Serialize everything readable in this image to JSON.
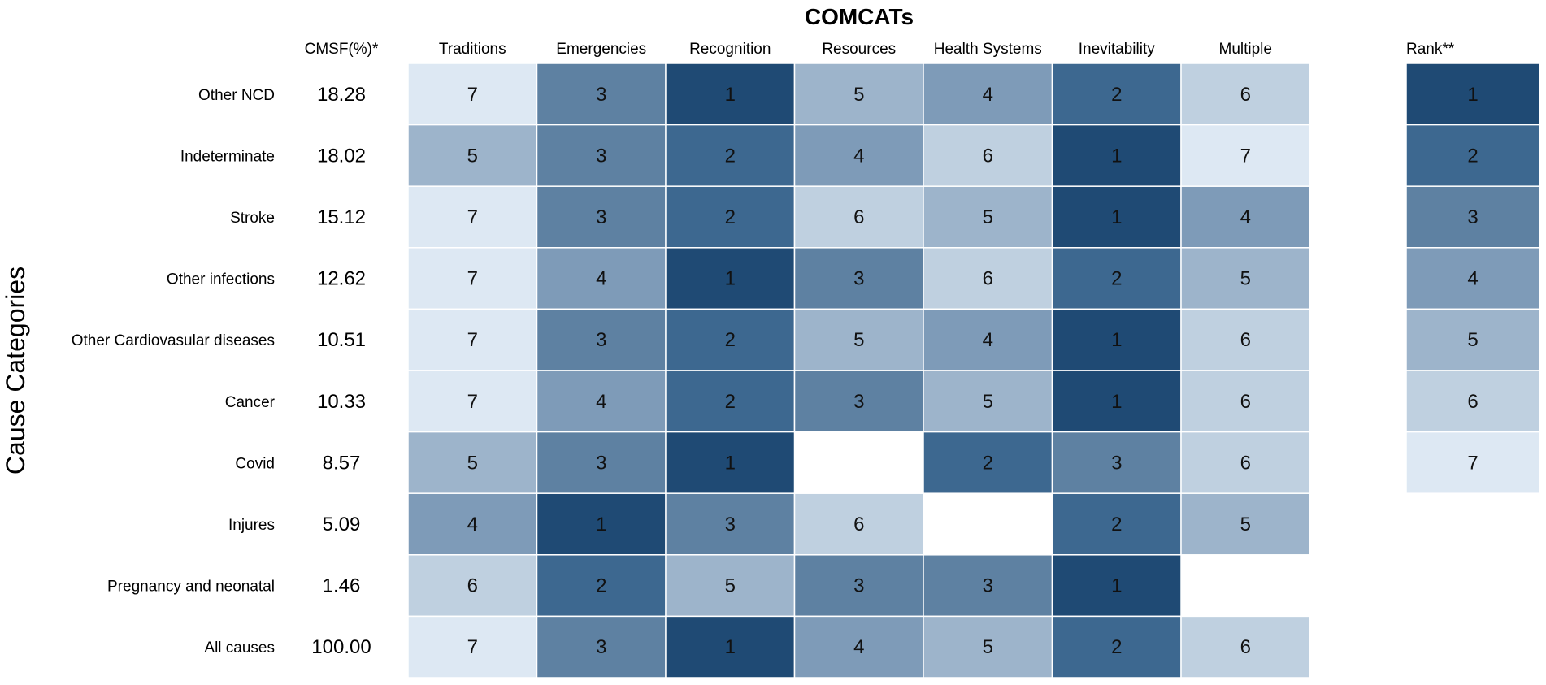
{
  "chart_data": {
    "type": "heatmap",
    "title": "COMCATs",
    "ylabel": "Cause Categories",
    "cmsf_header": "CMSF(%)*",
    "rank_header": "Rank**",
    "columns": [
      "Traditions",
      "Emergencies",
      "Recognition",
      "Resources",
      "Health Systems",
      "Inevitability",
      "Multiple"
    ],
    "rows": [
      {
        "label": "Other NCD",
        "cmsf": "18.28",
        "values": [
          7,
          3,
          1,
          5,
          4,
          2,
          6
        ],
        "rank": 1
      },
      {
        "label": "Indeterminate",
        "cmsf": "18.02",
        "values": [
          5,
          3,
          2,
          4,
          6,
          1,
          7
        ],
        "rank": 2
      },
      {
        "label": "Stroke",
        "cmsf": "15.12",
        "values": [
          7,
          3,
          2,
          6,
          5,
          1,
          4
        ],
        "rank": 3
      },
      {
        "label": "Other infections",
        "cmsf": "12.62",
        "values": [
          7,
          4,
          1,
          3,
          6,
          2,
          5
        ],
        "rank": 4
      },
      {
        "label": "Other Cardiovasular diseases",
        "cmsf": "10.51",
        "values": [
          7,
          3,
          2,
          5,
          4,
          1,
          6
        ],
        "rank": 5
      },
      {
        "label": "Cancer",
        "cmsf": "10.33",
        "values": [
          7,
          4,
          2,
          3,
          5,
          1,
          6
        ],
        "rank": 6
      },
      {
        "label": "Covid",
        "cmsf": "8.57",
        "values": [
          5,
          3,
          1,
          null,
          2,
          3,
          6
        ],
        "rank": 7
      },
      {
        "label": "Injures",
        "cmsf": "5.09",
        "values": [
          4,
          1,
          3,
          6,
          null,
          2,
          5
        ],
        "rank": null
      },
      {
        "label": "Pregnancy and neonatal",
        "cmsf": "1.46",
        "values": [
          6,
          2,
          5,
          3,
          3,
          1,
          null
        ],
        "rank": null
      },
      {
        "label": "All causes",
        "cmsf": "100.00",
        "values": [
          7,
          3,
          1,
          4,
          5,
          2,
          6
        ],
        "rank": null
      }
    ],
    "colors": {
      "1": "#1f4a74",
      "2": "#3d6890",
      "3": "#5e81a2",
      "4": "#7e9bb8",
      "5": "#9db4cb",
      "6": "#bfd0e0",
      "7": "#dde8f3"
    }
  }
}
